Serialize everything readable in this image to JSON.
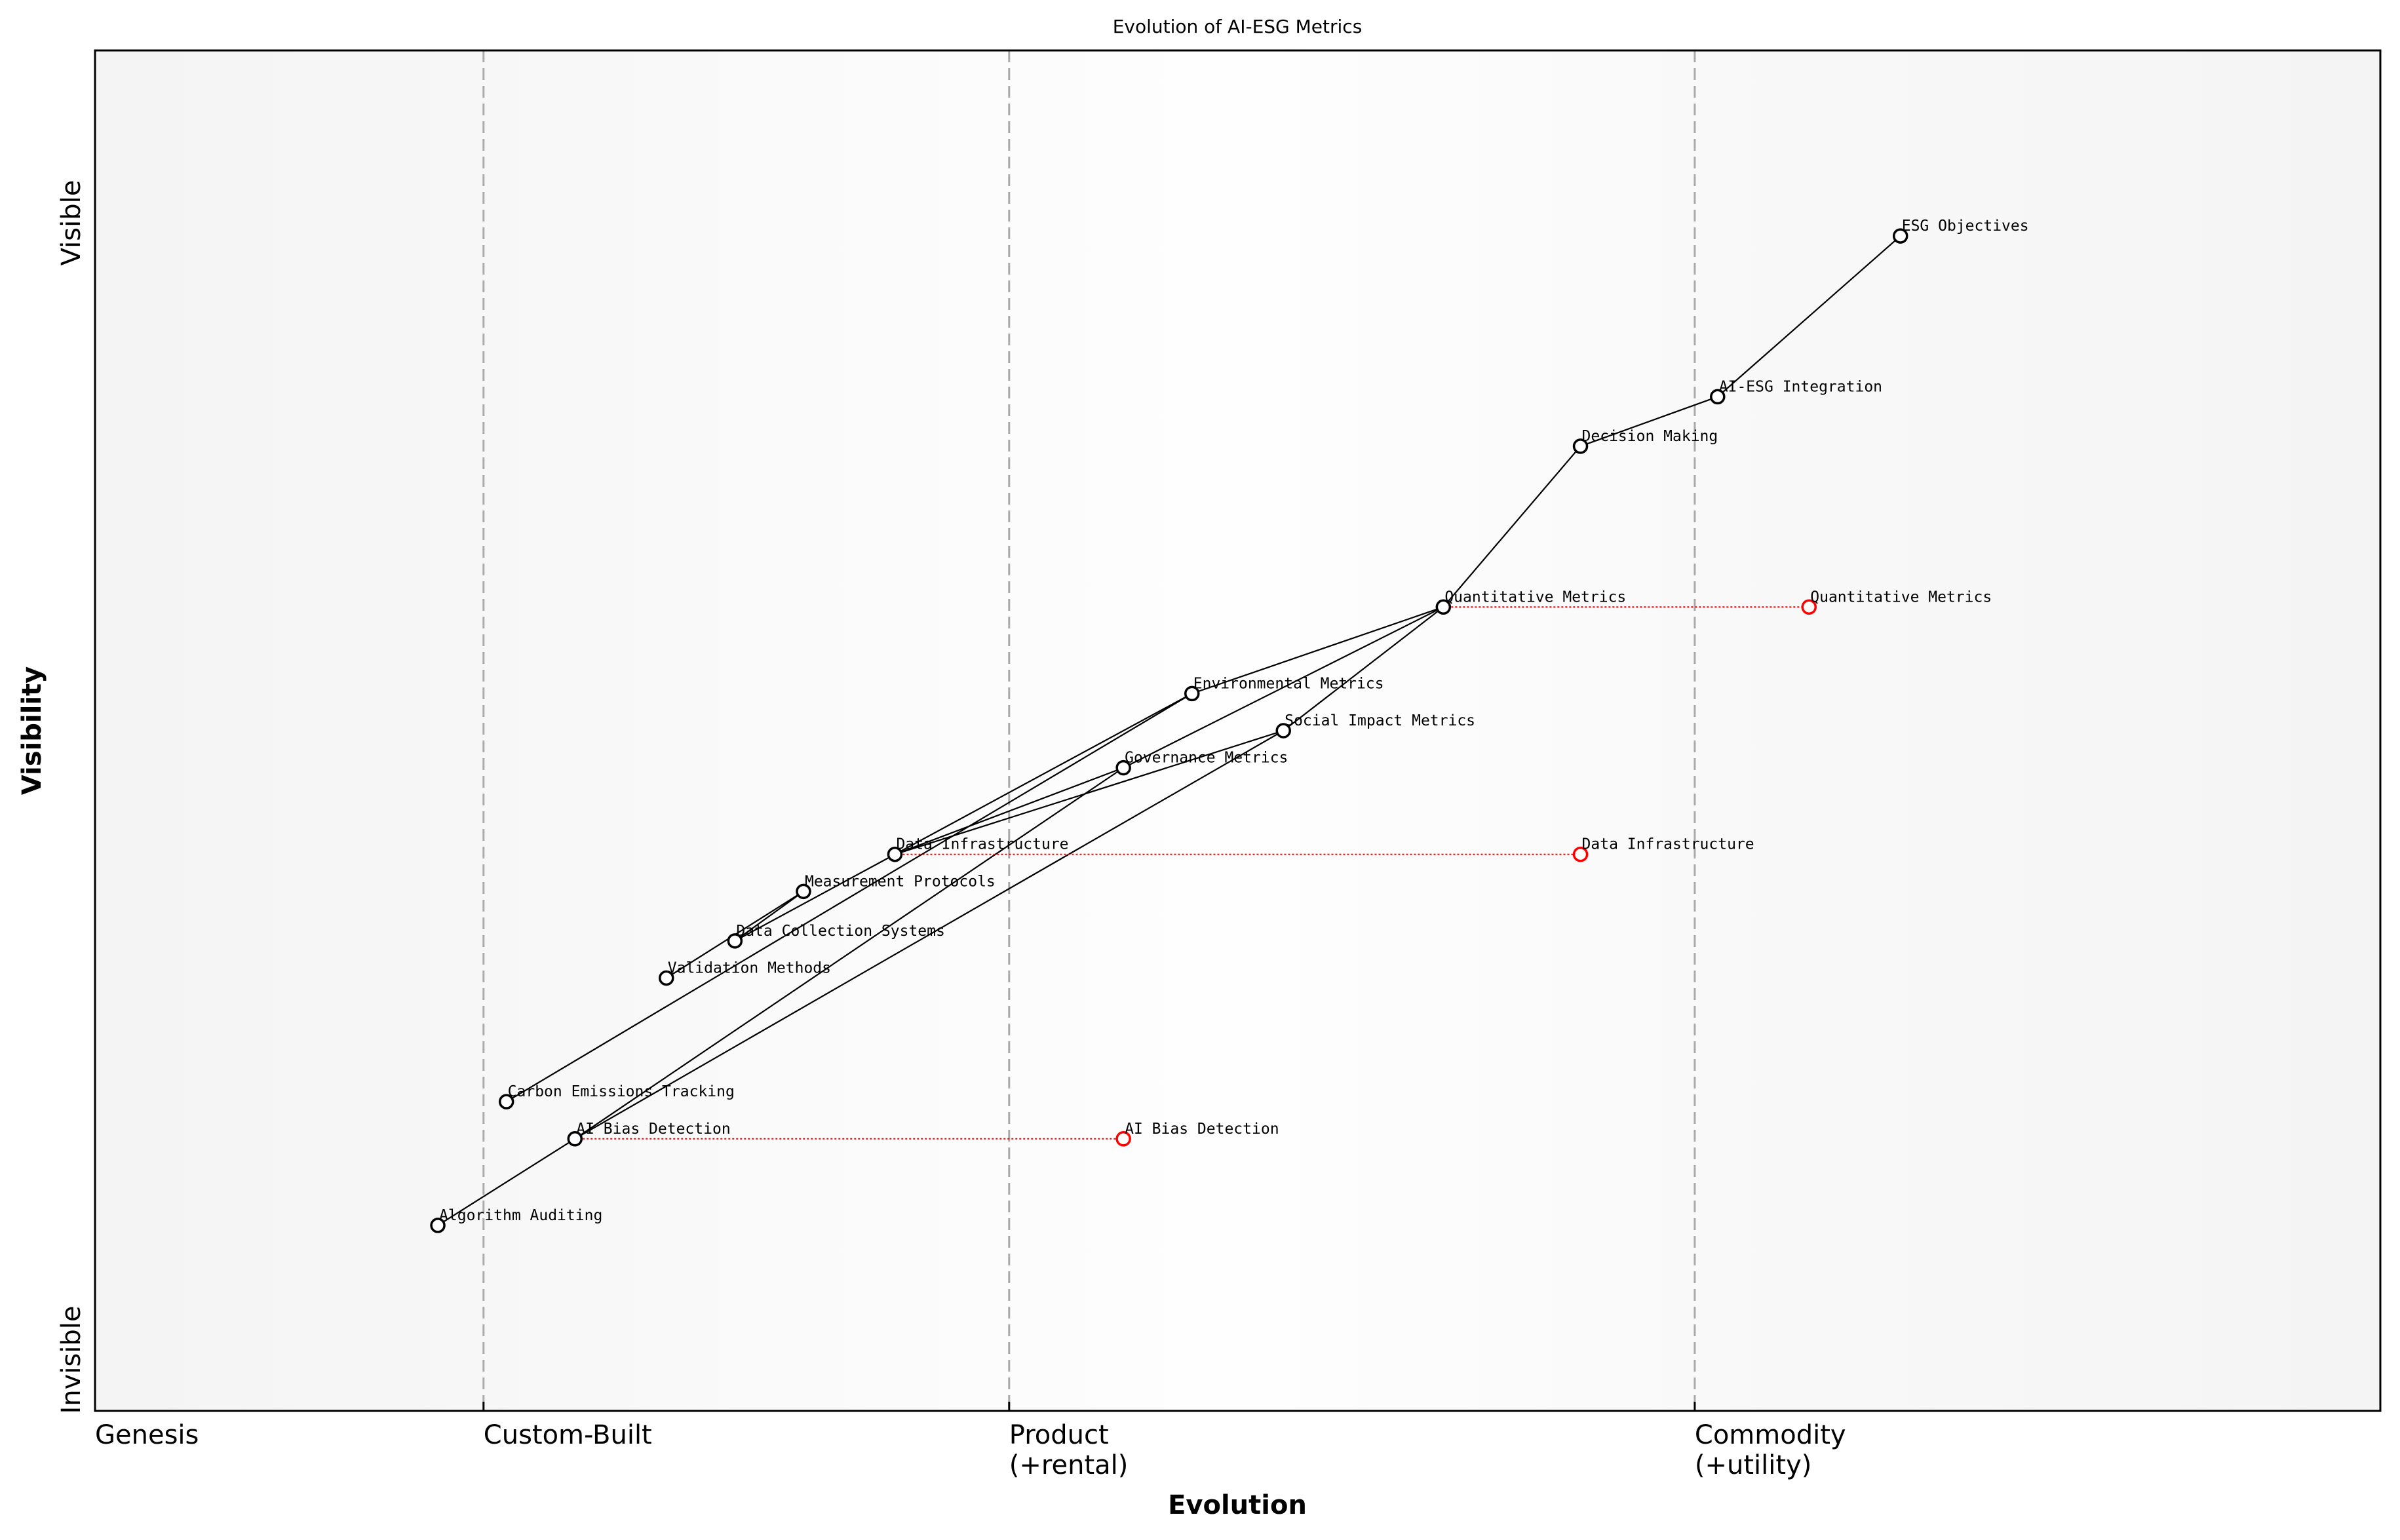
{
  "chart_data": {
    "type": "scatter",
    "title": "Evolution of AI-ESG Metrics",
    "xlabel": "Evolution",
    "ylabel": "Visibility",
    "xlim": [
      0,
      1
    ],
    "ylim": [
      -0.05,
      1.05
    ],
    "grid": false,
    "x_ticks": [
      {
        "value": 0.0,
        "label": [
          "Genesis"
        ]
      },
      {
        "value": 0.17,
        "label": [
          "Custom-Built"
        ]
      },
      {
        "value": 0.4,
        "label": [
          "Product",
          "(+rental)"
        ]
      },
      {
        "value": 0.7,
        "label": [
          "Commodity",
          "(+utility)"
        ]
      }
    ],
    "stage_lines": [
      0.17,
      0.4,
      0.7
    ],
    "y_labels": {
      "top": "Visible",
      "bottom": "Invisible"
    },
    "components": [
      {
        "name": "ESG Objectives",
        "x": 0.79,
        "y": 0.9
      },
      {
        "name": "AI-ESG Integration",
        "x": 0.71,
        "y": 0.77
      },
      {
        "name": "Decision Making",
        "x": 0.65,
        "y": 0.73
      },
      {
        "name": "Quantitative Metrics",
        "x": 0.59,
        "y": 0.6
      },
      {
        "name": "Environmental Metrics",
        "x": 0.48,
        "y": 0.53
      },
      {
        "name": "Social Impact Metrics",
        "x": 0.52,
        "y": 0.5
      },
      {
        "name": "Governance Metrics",
        "x": 0.45,
        "y": 0.47
      },
      {
        "name": "Data Infrastructure",
        "x": 0.35,
        "y": 0.4
      },
      {
        "name": "Measurement Protocols",
        "x": 0.31,
        "y": 0.37
      },
      {
        "name": "Data Collection Systems",
        "x": 0.28,
        "y": 0.33
      },
      {
        "name": "Validation Methods",
        "x": 0.25,
        "y": 0.3
      },
      {
        "name": "Carbon Emissions Tracking",
        "x": 0.18,
        "y": 0.2
      },
      {
        "name": "AI Bias Detection",
        "x": 0.21,
        "y": 0.17
      },
      {
        "name": "Algorithm Auditing",
        "x": 0.15,
        "y": 0.1
      }
    ],
    "links": [
      [
        "ESG Objectives",
        "AI-ESG Integration"
      ],
      [
        "AI-ESG Integration",
        "Decision Making"
      ],
      [
        "Decision Making",
        "Quantitative Metrics"
      ],
      [
        "Quantitative Metrics",
        "Environmental Metrics"
      ],
      [
        "Quantitative Metrics",
        "Governance Metrics"
      ],
      [
        "Quantitative Metrics",
        "Social Impact Metrics"
      ],
      [
        "Environmental Metrics",
        "Data Infrastructure"
      ],
      [
        "Environmental Metrics",
        "Carbon Emissions Tracking"
      ],
      [
        "Governance Metrics",
        "Data Infrastructure"
      ],
      [
        "Governance Metrics",
        "AI Bias Detection"
      ],
      [
        "Social Impact Metrics",
        "Data Infrastructure"
      ],
      [
        "Social Impact Metrics",
        "AI Bias Detection"
      ],
      [
        "Data Infrastructure",
        "Data Collection Systems"
      ],
      [
        "Measurement Protocols",
        "Data Collection Systems"
      ],
      [
        "Measurement Protocols",
        "Validation Methods"
      ],
      [
        "AI Bias Detection",
        "Algorithm Auditing"
      ]
    ],
    "evolutions": [
      {
        "name": "Quantitative Metrics",
        "from_x": 0.59,
        "to_x": 0.75,
        "y": 0.6
      },
      {
        "name": "Data Infrastructure",
        "from_x": 0.35,
        "to_x": 0.65,
        "y": 0.4
      },
      {
        "name": "AI Bias Detection",
        "from_x": 0.21,
        "to_x": 0.45,
        "y": 0.17
      }
    ],
    "colors": {
      "component": "#000000",
      "evolved": "#ff0000",
      "link": "#000000",
      "stage_line": "#aaaaaa",
      "background_edge": "#f4f4f4",
      "background_center": "#fefefe"
    }
  }
}
